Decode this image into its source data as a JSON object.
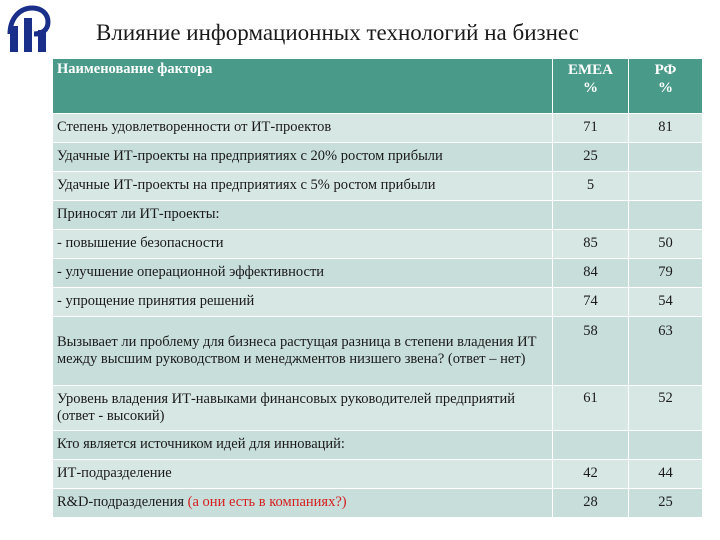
{
  "title": "Влияние информационных технологий на бизнес",
  "logo": {
    "icon": "hse-logo-icon",
    "color": "#1a2f8a"
  },
  "header": {
    "factor": "Наименование фактора",
    "emea": "EMEA %",
    "rf": "РФ %"
  },
  "rows": [
    {
      "label": "Степень удовлетворенности от ИТ-проектов",
      "emea": "71",
      "rf": "81"
    },
    {
      "label": "Удачные ИТ-проекты на предприятиях с 20% ростом прибыли",
      "emea": "25",
      "rf": ""
    },
    {
      "label": "Удачные ИТ-проекты на предприятиях с 5% ростом прибыли",
      "emea": "5",
      "rf": ""
    },
    {
      "label": "Приносят ли ИТ-проекты:",
      "emea": "",
      "rf": ""
    },
    {
      "label": "- повышение безопасности",
      "emea": "85",
      "rf": "50"
    },
    {
      "label": "- улучшение операционной эффективности",
      "emea": "84",
      "rf": "79"
    },
    {
      "label": "- упрощение принятия решений",
      "emea": "74",
      "rf": "54"
    },
    {
      "label": "Вызывает ли проблему для бизнеса растущая разница в степени владения ИТ между высшим руководством и менеджментов низшего звена? (ответ – нет)",
      "emea": "58",
      "rf": "63"
    },
    {
      "label": "Уровень владения ИТ-навыками финансовых руководителей предприятий (ответ - высокий)",
      "emea": "61",
      "rf": "52"
    },
    {
      "label": "Кто является источником идей для инноваций:",
      "emea": "",
      "rf": ""
    },
    {
      "label": "ИТ-подразделение",
      "emea": "42",
      "rf": "44"
    },
    {
      "label": "R&D-подразделения",
      "label_note": "(а они есть в компаниях?)",
      "emea": "28",
      "rf": "25"
    }
  ],
  "colors": {
    "header": "#4a9a8a",
    "row_light": "#d7e7e4",
    "row_dark": "#c7dedb",
    "note": "#d42020"
  }
}
